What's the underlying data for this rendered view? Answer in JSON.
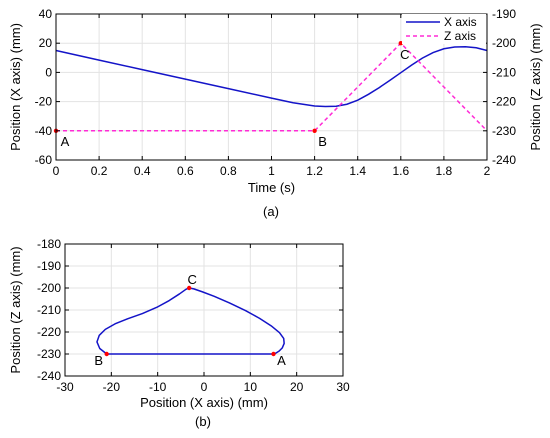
{
  "colors": {
    "x_series": "#1414c8",
    "z_series": "#ff2bd6",
    "points": "#ff0000",
    "grid": "#e3e3e3",
    "axis": "#000000"
  },
  "chart_data": [
    {
      "type": "line",
      "caption": "(a)",
      "xlabel": "Time (s)",
      "ylabel_left": "Position (X axis) (mm)",
      "ylabel_right": "Position (Z axis) (mm)",
      "xlim": [
        0,
        2
      ],
      "ylim_left": [
        -60,
        40
      ],
      "ylim_right": [
        -240,
        -190
      ],
      "x_ticks": [
        0,
        0.2,
        0.4,
        0.6,
        0.8,
        1,
        1.2,
        1.4,
        1.6,
        1.8,
        2
      ],
      "y_ticks_left": [
        -60,
        -40,
        -20,
        0,
        20,
        40
      ],
      "y_ticks_right": [
        -240,
        -230,
        -220,
        -210,
        -200,
        -190
      ],
      "grid": true,
      "legend_position": "top-right",
      "series": [
        {
          "name": "X axis",
          "axis": "left",
          "style": "solid",
          "x": [
            0,
            0.2,
            0.4,
            0.6,
            0.8,
            1.0,
            1.1,
            1.2,
            1.25,
            1.3,
            1.35,
            1.4,
            1.45,
            1.5,
            1.55,
            1.6,
            1.65,
            1.7,
            1.75,
            1.8,
            1.85,
            1.9,
            1.95,
            2.0
          ],
          "y": [
            15,
            8.4,
            1.9,
            -4.6,
            -11.1,
            -17.6,
            -20.8,
            -23,
            -23.4,
            -23.2,
            -21.8,
            -19,
            -15,
            -10.4,
            -5.4,
            -0.2,
            5,
            9.8,
            13.6,
            16.2,
            17.4,
            17.6,
            16.9,
            15
          ]
        },
        {
          "name": "Z axis",
          "axis": "right",
          "style": "dashed",
          "x": [
            0,
            1.2,
            1.6,
            2.0
          ],
          "y": [
            -230,
            -230,
            -200,
            -230
          ]
        }
      ],
      "points": [
        {
          "label": "A",
          "x": 0,
          "y": -230
        },
        {
          "label": "B",
          "x": 1.2,
          "y": -230
        },
        {
          "label": "C",
          "x": 1.6,
          "y": -200
        }
      ]
    },
    {
      "type": "line",
      "caption": "(b)",
      "xlabel": "Position (X axis) (mm)",
      "ylabel": "Position (Z axis) (mm)",
      "xlim": [
        -30,
        30
      ],
      "ylim": [
        -240,
        -180
      ],
      "x_ticks": [
        -30,
        -20,
        -10,
        0,
        10,
        20,
        30
      ],
      "y_ticks": [
        -240,
        -230,
        -220,
        -210,
        -200,
        -190,
        -180
      ],
      "grid": true,
      "series": [
        {
          "style": "solid",
          "x": [
            15,
            8,
            0,
            -8,
            -15,
            -21,
            -22.5,
            -23.1,
            -22.6,
            -21.3,
            -19.2,
            -16.5,
            -13.3,
            -10.2,
            -7.5,
            -5.3,
            -3.9,
            -3.2,
            -2.2,
            -0.4,
            2.2,
            5.5,
            9.0,
            12.0,
            14.5,
            16.3,
            17.2,
            17.3,
            16.9,
            16.2,
            15.5,
            15
          ],
          "y": [
            -230,
            -230,
            -230,
            -230,
            -230,
            -230,
            -227.5,
            -224.5,
            -221.5,
            -218.8,
            -216.3,
            -214,
            -211.6,
            -208.8,
            -205.7,
            -202.7,
            -200.6,
            -200,
            -200.4,
            -201.7,
            -203.8,
            -206.8,
            -210.3,
            -213.8,
            -217.2,
            -220.3,
            -222.9,
            -225.2,
            -227.2,
            -228.7,
            -229.6,
            -230
          ]
        }
      ],
      "points": [
        {
          "label": "A",
          "x": 15,
          "y": -230
        },
        {
          "label": "B",
          "x": -21,
          "y": -230
        },
        {
          "label": "C",
          "x": -3.2,
          "y": -200
        }
      ]
    }
  ]
}
